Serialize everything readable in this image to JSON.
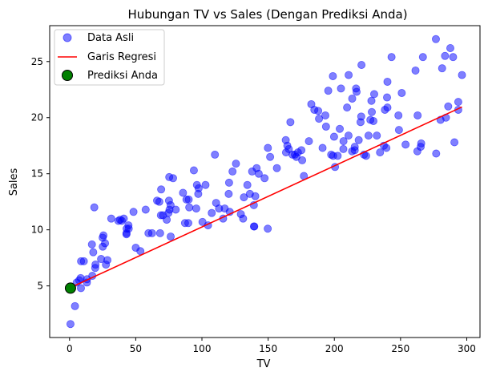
{
  "chart_data": {
    "type": "scatter",
    "title": "Hubungan TV vs Sales (Dengan Prediksi Anda)",
    "xlabel": "TV",
    "ylabel": "Sales",
    "xlim": [
      -15,
      310
    ],
    "ylim": [
      0.4,
      28.2
    ],
    "xticks": [
      0,
      50,
      100,
      150,
      200,
      250,
      300
    ],
    "yticks": [
      5,
      10,
      15,
      20,
      25
    ],
    "grid": false,
    "legend_position": "top-left",
    "series": [
      {
        "name": "Data Asli",
        "kind": "scatter",
        "color": "#0000ff",
        "points": [
          [
            0.7,
            1.6
          ],
          [
            4.1,
            3.2
          ],
          [
            5.4,
            5.3
          ],
          [
            7.3,
            5.5
          ],
          [
            8.4,
            5.7
          ],
          [
            8.6,
            4.8
          ],
          [
            8.7,
            7.2
          ],
          [
            10.8,
            7.2
          ],
          [
            13.1,
            5.3
          ],
          [
            13.2,
            5.6
          ],
          [
            16.9,
            8.7
          ],
          [
            17.2,
            5.9
          ],
          [
            17.9,
            8.0
          ],
          [
            18.7,
            12.0
          ],
          [
            19.4,
            6.6
          ],
          [
            19.6,
            6.9
          ],
          [
            23.8,
            7.4
          ],
          [
            25.1,
            8.5
          ],
          [
            25.6,
            9.5
          ],
          [
            26.8,
            8.8
          ],
          [
            27.5,
            6.9
          ],
          [
            28.6,
            7.3
          ],
          [
            31.5,
            11.0
          ],
          [
            36.9,
            10.8
          ],
          [
            38.2,
            10.9
          ],
          [
            39.5,
            10.8
          ],
          [
            43.0,
            9.6
          ],
          [
            43.1,
            10.1
          ],
          [
            44.5,
            10.4
          ],
          [
            44.7,
            10.1
          ],
          [
            48.3,
            11.6
          ],
          [
            50.0,
            8.4
          ],
          [
            53.5,
            8.1
          ],
          [
            57.5,
            11.8
          ],
          [
            59.6,
            9.7
          ],
          [
            62.3,
            9.7
          ],
          [
            66.1,
            12.6
          ],
          [
            67.8,
            12.5
          ],
          [
            68.4,
            9.7
          ],
          [
            69.0,
            11.3
          ],
          [
            69.2,
            13.6
          ],
          [
            70.6,
            11.3
          ],
          [
            73.4,
            10.9
          ],
          [
            74.7,
            11.5
          ],
          [
            75.1,
            12.6
          ],
          [
            75.3,
            14.7
          ],
          [
            75.5,
            11.8
          ],
          [
            76.3,
            12.2
          ],
          [
            76.4,
            9.4
          ],
          [
            78.2,
            14.6
          ],
          [
            80.2,
            11.8
          ],
          [
            85.7,
            13.3
          ],
          [
            87.2,
            10.6
          ],
          [
            88.3,
            12.7
          ],
          [
            89.7,
            10.6
          ],
          [
            90.4,
            12.0
          ],
          [
            93.9,
            15.3
          ],
          [
            95.7,
            11.9
          ],
          [
            96.2,
            14.0
          ],
          [
            97.2,
            13.2
          ],
          [
            97.5,
            13.7
          ],
          [
            100.4,
            10.7
          ],
          [
            102.7,
            14.0
          ],
          [
            104.6,
            10.4
          ],
          [
            107.4,
            11.5
          ],
          [
            109.8,
            16.7
          ],
          [
            110.7,
            12.4
          ],
          [
            112.9,
            11.9
          ],
          [
            116.0,
            11.0
          ],
          [
            117.2,
            11.9
          ],
          [
            120.2,
            13.2
          ],
          [
            120.5,
            14.2
          ],
          [
            121.0,
            11.6
          ],
          [
            123.1,
            15.2
          ],
          [
            125.7,
            15.9
          ],
          [
            129.4,
            11.4
          ],
          [
            131.1,
            11.0
          ],
          [
            131.7,
            12.9
          ],
          [
            134.3,
            14.0
          ],
          [
            136.2,
            13.2
          ],
          [
            137.9,
            15.2
          ],
          [
            139.2,
            12.2
          ],
          [
            139.3,
            10.3
          ],
          [
            139.5,
            10.3
          ],
          [
            140.3,
            13.0
          ],
          [
            141.3,
            15.5
          ],
          [
            142.9,
            15.0
          ],
          [
            147.3,
            14.6
          ],
          [
            149.7,
            10.1
          ],
          [
            149.8,
            17.3
          ],
          [
            151.5,
            16.5
          ],
          [
            156.6,
            15.5
          ],
          [
            163.3,
            18.0
          ],
          [
            163.5,
            16.9
          ],
          [
            164.5,
            17.5
          ],
          [
            165.6,
            17.2
          ],
          [
            166.8,
            19.6
          ],
          [
            168.4,
            16.7
          ],
          [
            170.2,
            16.7
          ],
          [
            171.3,
            16.5
          ],
          [
            172.5,
            16.9
          ],
          [
            175.1,
            17.1
          ],
          [
            175.7,
            16.2
          ],
          [
            177.0,
            14.8
          ],
          [
            180.8,
            17.9
          ],
          [
            182.6,
            21.2
          ],
          [
            184.9,
            20.7
          ],
          [
            187.8,
            20.6
          ],
          [
            188.4,
            19.9
          ],
          [
            191.1,
            17.3
          ],
          [
            193.2,
            20.2
          ],
          [
            193.7,
            19.2
          ],
          [
            195.4,
            22.4
          ],
          [
            197.6,
            16.7
          ],
          [
            198.9,
            23.7
          ],
          [
            199.1,
            16.6
          ],
          [
            199.8,
            18.3
          ],
          [
            200.5,
            15.6
          ],
          [
            202.5,
            16.6
          ],
          [
            204.1,
            19.0
          ],
          [
            205.0,
            22.6
          ],
          [
            206.8,
            17.2
          ],
          [
            206.9,
            17.9
          ],
          [
            209.6,
            20.9
          ],
          [
            210.7,
            18.4
          ],
          [
            210.8,
            23.8
          ],
          [
            213.4,
            17.0
          ],
          [
            213.5,
            21.7
          ],
          [
            215.4,
            17.1
          ],
          [
            215.4,
            17.4
          ],
          [
            216.4,
            22.6
          ],
          [
            216.8,
            22.3
          ],
          [
            218.4,
            18.0
          ],
          [
            219.8,
            19.6
          ],
          [
            220.3,
            20.1
          ],
          [
            220.5,
            24.7
          ],
          [
            222.4,
            16.7
          ],
          [
            224.0,
            16.6
          ],
          [
            225.8,
            18.4
          ],
          [
            227.2,
            19.8
          ],
          [
            228.0,
            21.5
          ],
          [
            228.3,
            20.5
          ],
          [
            229.5,
            19.7
          ],
          [
            230.1,
            22.1
          ],
          [
            232.1,
            18.4
          ],
          [
            234.5,
            16.9
          ],
          [
            237.4,
            17.5
          ],
          [
            238.2,
            20.7
          ],
          [
            239.3,
            17.3
          ],
          [
            239.8,
            21.8
          ],
          [
            240.1,
            23.2
          ],
          [
            240.1,
            20.9
          ],
          [
            243.2,
            25.4
          ],
          [
            248.4,
            20.2
          ],
          [
            248.8,
            18.9
          ],
          [
            250.9,
            22.2
          ],
          [
            253.8,
            17.6
          ],
          [
            261.3,
            24.2
          ],
          [
            262.7,
            17.0
          ],
          [
            262.9,
            20.2
          ],
          [
            265.2,
            17.4
          ],
          [
            265.6,
            17.7
          ],
          [
            266.9,
            25.4
          ],
          [
            276.7,
            27.0
          ],
          [
            276.9,
            16.8
          ],
          [
            280.2,
            19.8
          ],
          [
            281.4,
            24.4
          ],
          [
            283.6,
            25.5
          ],
          [
            284.3,
            20.0
          ],
          [
            286.0,
            21.0
          ],
          [
            287.6,
            26.2
          ],
          [
            289.7,
            25.4
          ],
          [
            290.7,
            17.8
          ],
          [
            293.6,
            21.4
          ],
          [
            296.4,
            23.8
          ],
          [
            293.6,
            20.7
          ],
          [
            90.0,
            12.7
          ],
          [
            43.0,
            9.7
          ],
          [
            25.0,
            9.3
          ],
          [
            41.0,
            11.0
          ]
        ]
      },
      {
        "name": "Garis Regresi",
        "kind": "line",
        "color": "#ff0000",
        "points": [
          [
            0.7,
            4.85
          ],
          [
            296.4,
            20.95
          ]
        ]
      },
      {
        "name": "Prediksi Anda",
        "kind": "marker",
        "color": "#008000",
        "points": [
          [
            0.7,
            4.8
          ]
        ]
      }
    ]
  }
}
